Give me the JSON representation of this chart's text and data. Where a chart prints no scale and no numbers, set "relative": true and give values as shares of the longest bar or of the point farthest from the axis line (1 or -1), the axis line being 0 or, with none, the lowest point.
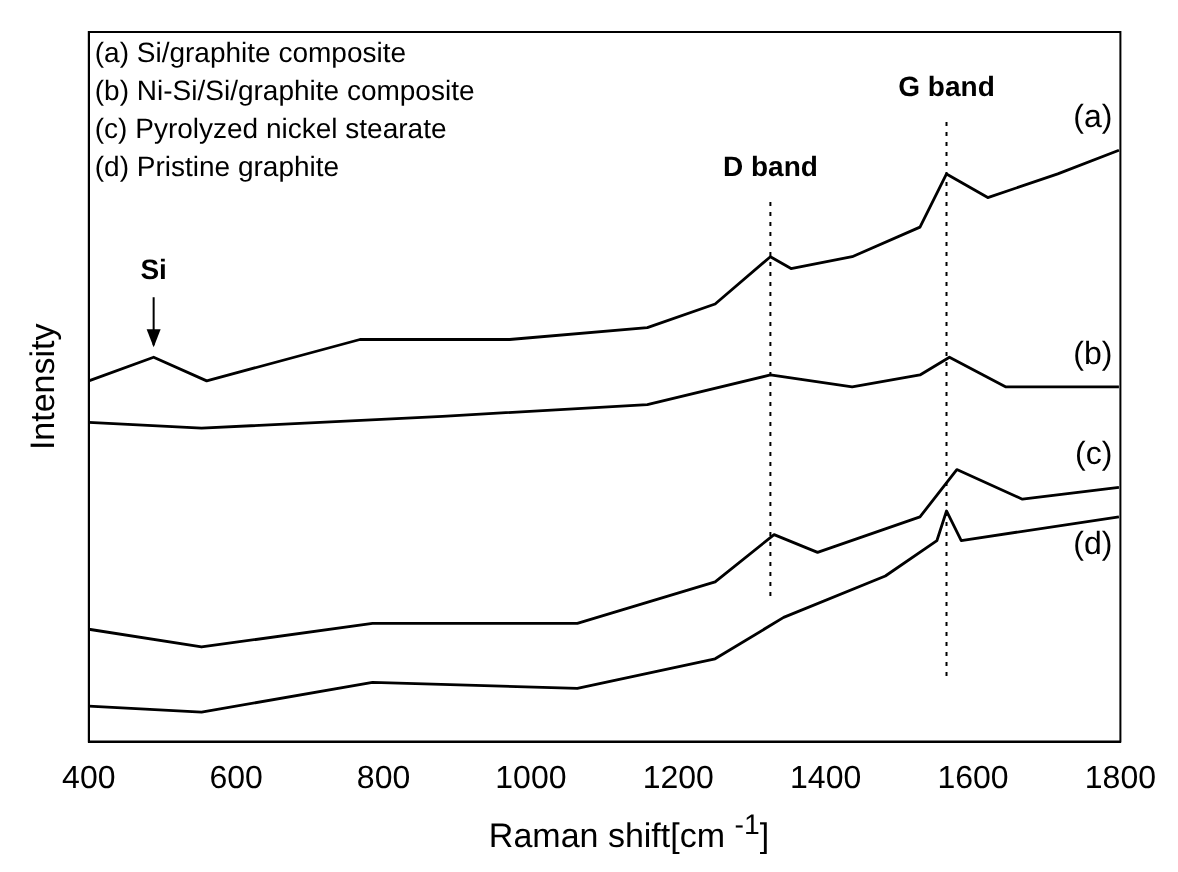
{
  "chart_data": {
    "type": "line",
    "relative": true,
    "xlabel": "Raman shift[cm $^{-1}$]",
    "ylabel": "Intensity",
    "xlim": [
      400,
      1800
    ],
    "xticks": [
      400,
      600,
      800,
      1000,
      1200,
      1400,
      1600,
      1800
    ],
    "tick_labels": "x",
    "grid": false,
    "legend": false,
    "marker": "none",
    "line_style": "solid",
    "series": [
      {
        "name": "(a)",
        "color": "#000000",
        "x": [
          400,
          488,
          560,
          768,
          971,
          1158,
          1250,
          1325,
          1353,
          1436,
          1528,
          1564,
          1620,
          1715,
          1798
        ],
        "values": [
          0.61,
          0.65,
          0.61,
          0.68,
          0.68,
          0.7,
          0.74,
          0.82,
          0.8,
          0.82,
          0.87,
          0.96,
          0.92,
          0.96,
          1.0
        ]
      },
      {
        "name": "(b)",
        "color": "#000000",
        "x": [
          400,
          553,
          880,
          1158,
          1325,
          1436,
          1528,
          1568,
          1644,
          1798
        ],
        "values": [
          0.54,
          0.53,
          0.55,
          0.57,
          0.62,
          0.6,
          0.62,
          0.65,
          0.6,
          0.6
        ]
      },
      {
        "name": "(c)",
        "color": "#000000",
        "x": [
          400,
          553,
          785,
          1063,
          1250,
          1330,
          1389,
          1528,
          1578,
          1667,
          1798
        ],
        "values": [
          0.19,
          0.16,
          0.2,
          0.2,
          0.27,
          0.35,
          0.32,
          0.38,
          0.46,
          0.41,
          0.43
        ]
      },
      {
        "name": "(d)",
        "color": "#000000",
        "x": [
          400,
          553,
          785,
          1063,
          1250,
          1343,
          1481,
          1551,
          1564,
          1584,
          1798
        ],
        "values": [
          0.06,
          0.05,
          0.1,
          0.09,
          0.14,
          0.21,
          0.28,
          0.34,
          0.39,
          0.34,
          0.38
        ]
      }
    ],
    "ref_lines": [
      {
        "axis": "x",
        "value": 1325,
        "label": "D band",
        "line_style": "dotted"
      },
      {
        "axis": "x",
        "value": 1564,
        "label": "G band",
        "line_style": "dotted"
      }
    ],
    "annotations": [
      "(a) Si/graphite composite",
      "(b) Ni-Si/Si/graphite composite",
      "(c) Pyrolyzed nickel stearate",
      "(d) Pristine graphite",
      {
        "text": "Si",
        "x": 488,
        "y": 0.65
      }
    ]
  }
}
